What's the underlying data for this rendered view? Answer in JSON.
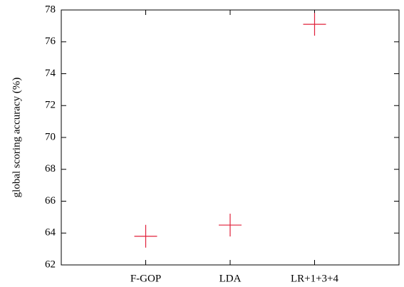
{
  "chart_data": {
    "type": "scatter",
    "title": "",
    "xlabel": "",
    "ylabel": "global scoring accuracy (%)",
    "categories": [
      "F-GOP",
      "LDA",
      "LR+1+3+4"
    ],
    "values": [
      63.8,
      64.5,
      77.1
    ],
    "ylim": [
      62,
      78
    ],
    "yticks": [
      62,
      64,
      66,
      68,
      70,
      72,
      74,
      76,
      78
    ],
    "yticklabels": [
      "62",
      "64",
      "66",
      "68",
      "70",
      "72",
      "74",
      "76",
      "78"
    ],
    "marker": "plus",
    "marker_color": "#e0203a",
    "grid": false,
    "legend": "none"
  }
}
